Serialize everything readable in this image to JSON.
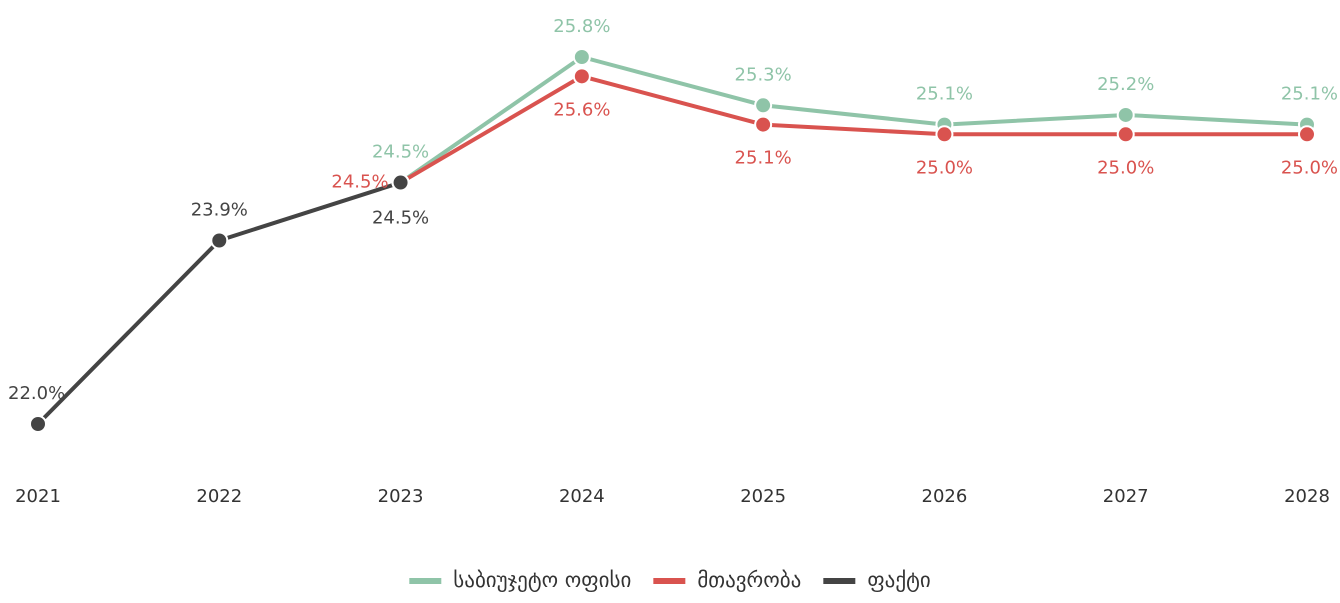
{
  "chart_data": {
    "type": "line",
    "categories": [
      "2021",
      "2022",
      "2023",
      "2024",
      "2025",
      "2026",
      "2027",
      "2028"
    ],
    "series": [
      {
        "name": "საბიუჯეტო ოფისი",
        "color": "#8fc4a8",
        "values": [
          null,
          null,
          24.5,
          25.8,
          25.3,
          25.1,
          25.2,
          25.1
        ],
        "value_labels": [
          null,
          null,
          "24.5%",
          "25.8%",
          "25.3%",
          "25.1%",
          "25.2%",
          "25.1%"
        ]
      },
      {
        "name": "მთავრობა",
        "color": "#d9534f",
        "values": [
          null,
          null,
          24.5,
          25.6,
          25.1,
          25.0,
          25.0,
          25.0
        ],
        "value_labels": [
          null,
          null,
          "24.5%",
          "25.6%",
          "25.1%",
          "25.0%",
          "25.0%",
          "25.0%"
        ]
      },
      {
        "name": "ფაქტი",
        "color": "#444444",
        "values": [
          22.0,
          23.9,
          24.5,
          null,
          null,
          null,
          null,
          null
        ],
        "value_labels": [
          "22.0%",
          "23.9%",
          "24.5%",
          null,
          null,
          null,
          null,
          null
        ]
      }
    ],
    "legend": "bottom"
  }
}
